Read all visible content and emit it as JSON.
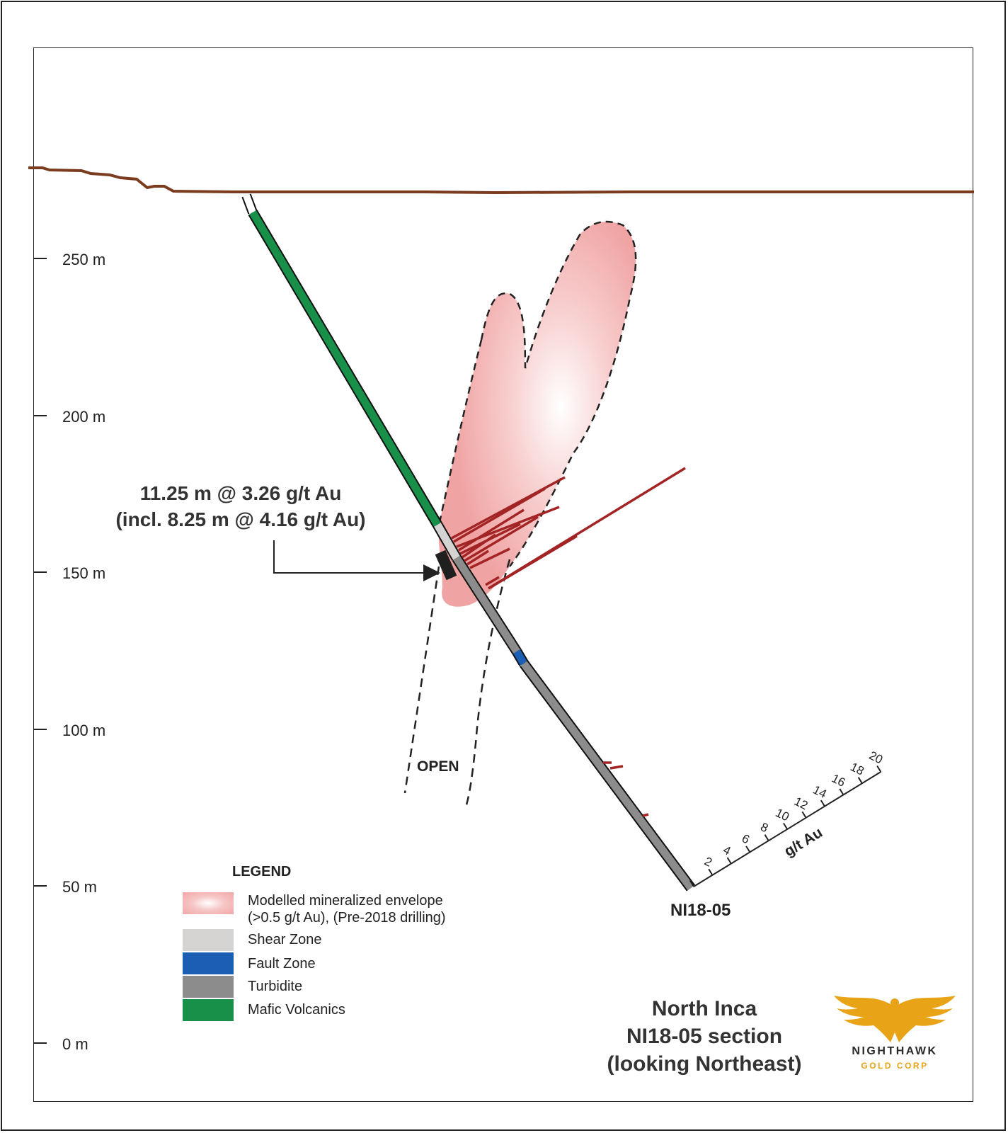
{
  "depth_axis": {
    "ticks": [
      {
        "label": "250 m"
      },
      {
        "label": "200 m"
      },
      {
        "label": "150 m"
      },
      {
        "label": "100 m"
      },
      {
        "label": "50 m"
      },
      {
        "label": "0 m"
      }
    ]
  },
  "callout": {
    "line1": "11.25 m @ 3.26 g/t Au",
    "line2": "(incl. 8.25 m @ 4.16 g/t Au)"
  },
  "open_label": "OPEN",
  "hole_id": "NI18-05",
  "grade_scale": {
    "unit": "g/t Au",
    "ticks": [
      "2",
      "4",
      "6",
      "8",
      "10",
      "12",
      "14",
      "16",
      "18",
      "20"
    ]
  },
  "legend": {
    "title": "LEGEND",
    "items": [
      {
        "label": "Modelled mineralized envelope",
        "sublabel": "(>0.5 g/t Au), (Pre-2018 drilling)",
        "color": "#f2a6a6"
      },
      {
        "label": "Shear Zone",
        "sublabel": "",
        "color": "#d6d3d3"
      },
      {
        "label": "Fault Zone",
        "sublabel": "",
        "color": "#1a5fb4"
      },
      {
        "label": "Turbidite",
        "sublabel": "",
        "color": "#8c8c8c"
      },
      {
        "label": "Mafic Volcanics",
        "sublabel": "",
        "color": "#18904a"
      }
    ]
  },
  "title_block": {
    "line1": "North Inca",
    "line2": "NI18-05 section",
    "line3": "(looking Northeast)"
  },
  "logo": {
    "name": "NIGHTHAWK",
    "sub": "GOLD CORP"
  },
  "colors": {
    "topography": "#7a3b1e",
    "assay_bars": "#a32424",
    "mafic": "#18904a",
    "shear": "#d6d3d3",
    "turbidite": "#8c8c8c",
    "fault": "#1a5fb4",
    "envelope": "#f2a6a6",
    "logo_gold": "#e8a317"
  }
}
